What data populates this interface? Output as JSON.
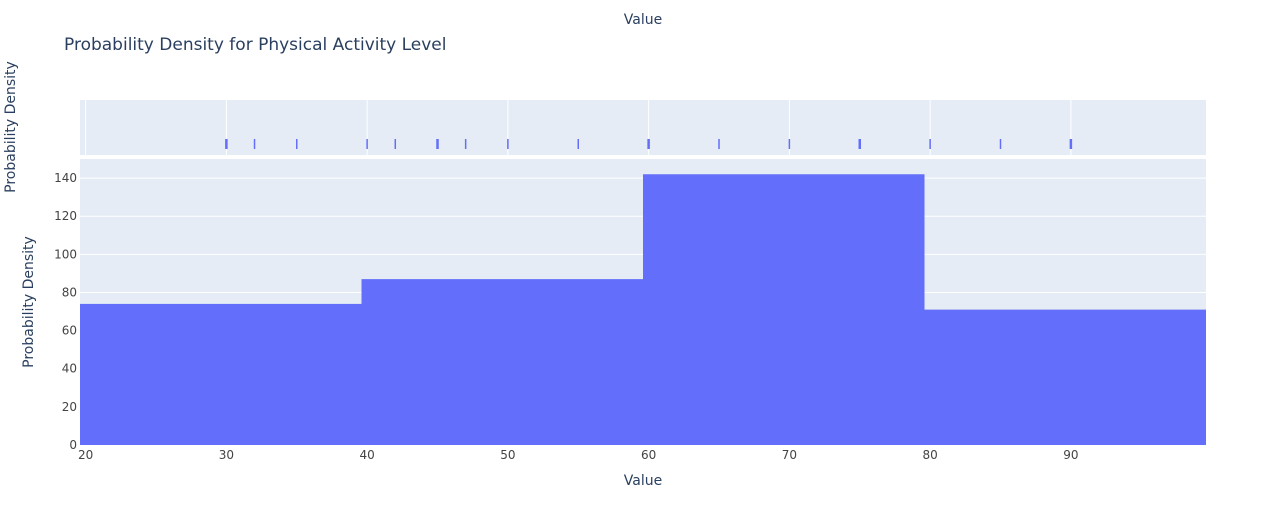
{
  "chart_data": {
    "type": "bar",
    "title": "Probability Density for Physical Activity Level",
    "top_xlabel": "Value",
    "xlabel": "Value",
    "ylabel": "Probability Density",
    "rug_ylabel": "Probability Density",
    "xlim": [
      19.6,
      99.6
    ],
    "ylim": [
      0,
      150
    ],
    "x_ticks": [
      20,
      30,
      40,
      50,
      60,
      70,
      80,
      90
    ],
    "y_ticks": [
      0,
      20,
      40,
      60,
      80,
      100,
      120,
      140
    ],
    "bins": [
      {
        "start": 19.6,
        "end": 39.6,
        "value": 74
      },
      {
        "start": 39.6,
        "end": 59.6,
        "value": 87
      },
      {
        "start": 59.6,
        "end": 79.6,
        "value": 142
      },
      {
        "start": 79.6,
        "end": 99.6,
        "value": 71
      }
    ],
    "rug_values": [
      30,
      32,
      35,
      40,
      42,
      45,
      47,
      50,
      55,
      60,
      65,
      70,
      75,
      80,
      85,
      90
    ],
    "rug_heavy": [
      30,
      45,
      60,
      75,
      90
    ],
    "grid": true
  },
  "colors": {
    "bar": "#636efa",
    "plot_bg": "#e5ecf6",
    "grid": "#ffffff",
    "text": "#2a3f5f",
    "tick_text": "#444444"
  }
}
